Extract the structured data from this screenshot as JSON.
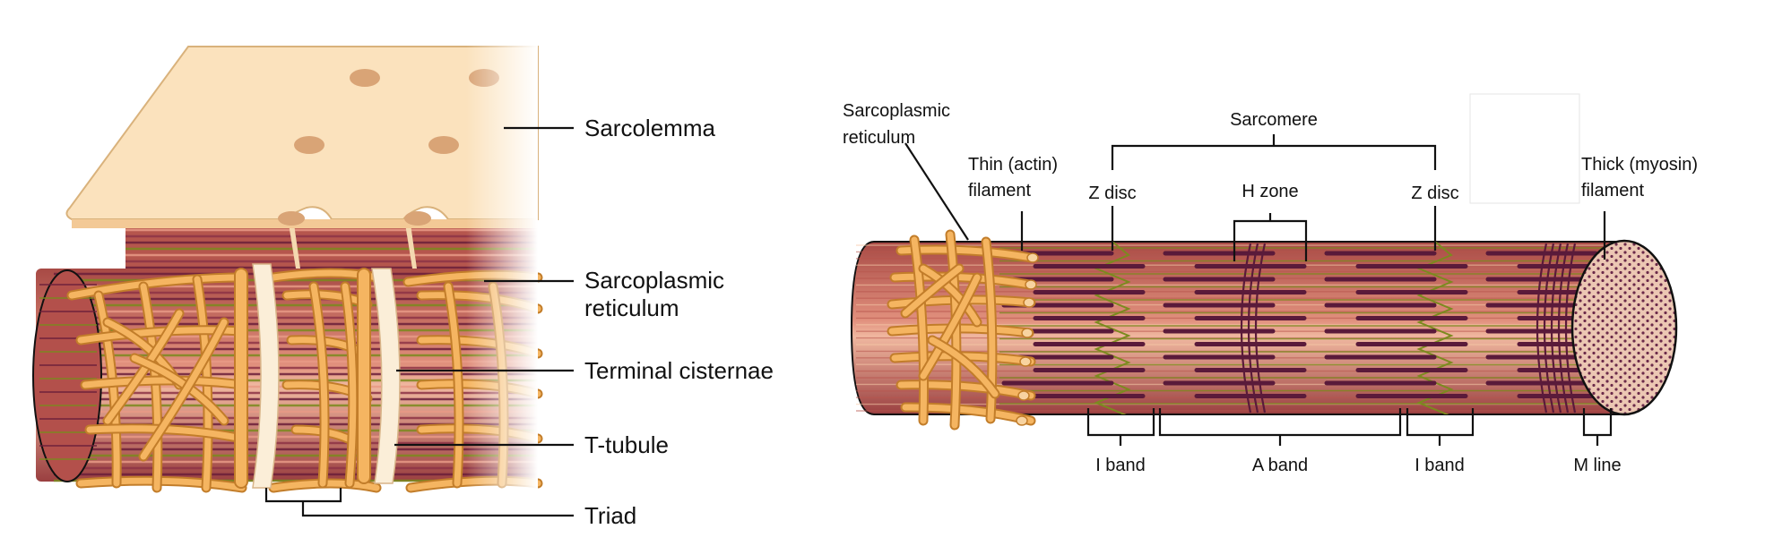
{
  "left_panel": {
    "labels": {
      "sarcolemma": "Sarcolemma",
      "sarcoplasmic_reticulum_line1": "Sarcoplasmic",
      "sarcoplasmic_reticulum_line2": "reticulum",
      "terminal_cisternae": "Terminal cisternae",
      "t_tubule": "T-tubule",
      "triad": "Triad"
    }
  },
  "right_panel": {
    "labels": {
      "sarcoplasmic_reticulum_line1": "Sarcoplasmic",
      "sarcoplasmic_reticulum_line2": "reticulum",
      "thin_filament_line1": "Thin (actin)",
      "thin_filament_line2": "filament",
      "sarcomere": "Sarcomere",
      "z_disc_left": "Z disc",
      "h_zone": "H zone",
      "z_disc_right": "Z disc",
      "thick_filament_line1": "Thick (myosin)",
      "thick_filament_line2": "filament",
      "i_band_left": "I band",
      "a_band": "A band",
      "i_band_right": "I band",
      "m_line": "M line"
    }
  },
  "colors": {
    "sarcolemma": "#fbe2bd",
    "sarcolemma_edge": "#d9b27c",
    "reticulum": "#f5b561",
    "reticulum_edge": "#c27d2a",
    "fiber_base": "#c9675a",
    "fiber_light": "#e89a86",
    "fiber_dark": "#6b1f3a",
    "myosin": "#5a1a3a",
    "actin_line": "#7b8a1e",
    "highlight": "#f6c9a8",
    "end_cap": "#ecc7b3",
    "dot": "#6b2a4a"
  }
}
